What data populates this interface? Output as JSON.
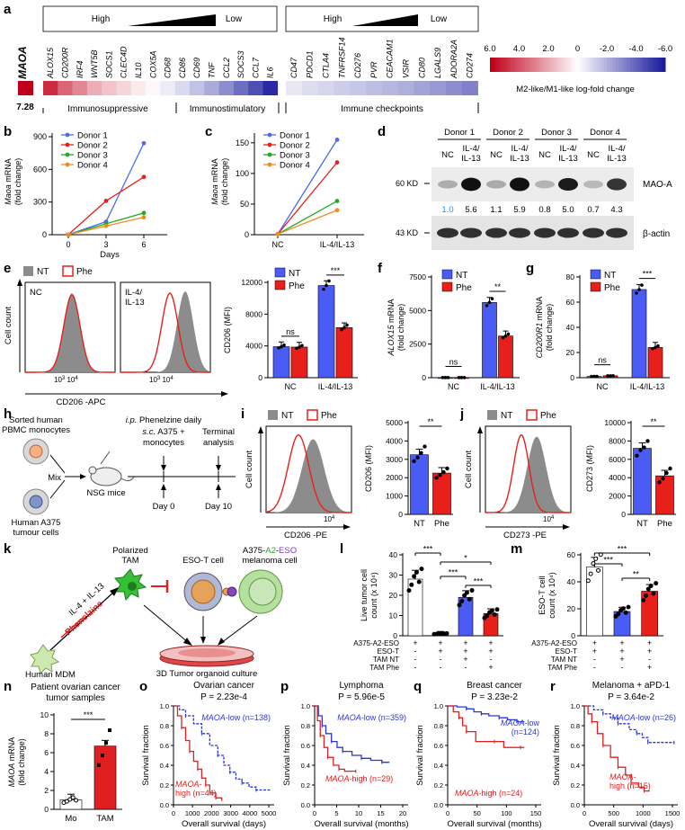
{
  "panels": {
    "a": "a",
    "b": "b",
    "c": "c",
    "d": "d",
    "e": "e",
    "f": "f",
    "g": "g",
    "h": "h",
    "i": "i",
    "j": "j",
    "k": "k",
    "l": "l",
    "m": "m",
    "n": "n",
    "o": "o",
    "p": "p",
    "q": "q",
    "r": "r"
  },
  "panel_a": {
    "high": "High",
    "low": "Low",
    "maoa_label": "MAOA",
    "maoa_value": "7.28",
    "genes": [
      "ALOX15",
      "CD200R",
      "IRF4",
      "WNT5B",
      "SOCS1",
      "CLEC4D",
      "IL10",
      "COX5A",
      "CD68",
      "CD86",
      "CD69",
      "TNF",
      "CCL2",
      "SOCS3",
      "CCL7",
      "IL6",
      "CD47",
      "PDCD1",
      "CTLA4",
      "TNFRSF14",
      "CD276",
      "PVR",
      "CEACAM1",
      "VSIR",
      "CD80",
      "LGALS9",
      "ADORA2A",
      "CD274"
    ],
    "values": [
      5.0,
      3.6,
      2.8,
      1.9,
      1.4,
      1.0,
      0.5,
      0.2,
      -0.5,
      -1.0,
      -1.6,
      -2.2,
      -3.0,
      -3.8,
      -4.6,
      -5.6,
      -0.6,
      -0.9,
      -1.1,
      -1.3,
      -1.5,
      -1.7,
      -1.9,
      -2.1,
      -2.4,
      -2.7,
      -3.0,
      -3.3
    ],
    "group_labels": [
      "Immunosuppressive",
      "Immunostimulatory",
      "Immune checkpoints"
    ],
    "scale_ticks": [
      "6.0",
      "4.0",
      "2.0",
      "0",
      "-2.0",
      "-4.0",
      "-6.0"
    ],
    "scale_title": "M2-like/M1-like log-fold change",
    "colors": {
      "high": "#c0001a",
      "mid": "#ffffff",
      "low": "#1a1a9c"
    }
  },
  "panel_b": {
    "ylabel_italic": "Maoa",
    "ylabel_rest": " mRNA",
    "ylabel2": "(fold change)",
    "xlabel": "Days",
    "x_ticks": [
      "0",
      "3",
      "6"
    ],
    "y_ticks": [
      "0",
      "300",
      "600",
      "900"
    ],
    "legend": [
      "Donor 1",
      "Donor 2",
      "Donor 3",
      "Donor 4"
    ],
    "colors": [
      "#4a6cf0",
      "#e8201c",
      "#22aa22",
      "#f28c1e"
    ],
    "chart_data": {
      "type": "line",
      "x": [
        0,
        3,
        6
      ],
      "series": [
        {
          "name": "Donor 1",
          "values": [
            1,
            120,
            840
          ]
        },
        {
          "name": "Donor 2",
          "values": [
            1,
            310,
            530
          ]
        },
        {
          "name": "Donor 3",
          "values": [
            1,
            100,
            200
          ]
        },
        {
          "name": "Donor 4",
          "values": [
            1,
            80,
            160
          ]
        }
      ],
      "ylim": [
        0,
        900
      ]
    }
  },
  "panel_c": {
    "ylabel_italic": "Maoa",
    "ylabel_rest": " mRNA",
    "ylabel2": "(fold change)",
    "x_ticks": [
      "NC",
      "IL-4/IL-13"
    ],
    "y_ticks": [
      "0",
      "50",
      "100",
      "150"
    ],
    "legend": [
      "Donor 1",
      "Donor 2",
      "Donor 3",
      "Donor 4"
    ],
    "chart_data": {
      "type": "line",
      "x": [
        "NC",
        "IL-4/IL-13"
      ],
      "series": [
        {
          "name": "Donor 1",
          "values": [
            1,
            155
          ]
        },
        {
          "name": "Donor 2",
          "values": [
            1,
            118
          ]
        },
        {
          "name": "Donor 3",
          "values": [
            1,
            55
          ]
        },
        {
          "name": "Donor 4",
          "values": [
            1,
            40
          ]
        }
      ],
      "ylim": [
        0,
        160
      ]
    }
  },
  "panel_d": {
    "donors": [
      "Donor 1",
      "Donor 2",
      "Donor 3",
      "Donor 4"
    ],
    "lanes": [
      "NC",
      "IL-4/\nIL-13",
      "NC",
      "IL-4/\nIL-13",
      "NC",
      "IL-4/\nIL-13",
      "NC",
      "IL-4/\nIL-13"
    ],
    "lane_nc": "NC",
    "lane_il_1": "IL-4/",
    "lane_il_2": "IL-13",
    "quant": [
      "1.0",
      "5.6",
      "1.1",
      "5.9",
      "0.8",
      "5.0",
      "0.7",
      "4.3"
    ],
    "quant_first_color": "#1e90ff",
    "mw1": "60 KD",
    "mw2": "43 KD",
    "protein1": "MAO-A",
    "protein2": "β-actin"
  },
  "panel_e": {
    "legend_nt": "NT",
    "legend_phe": "Phe",
    "hist1_label": "NC",
    "hist2_label_1": "IL-4/",
    "hist2_label_2": "IL-13",
    "ylabel": "Cell count",
    "xlabel": "CD206 -APC",
    "x_ticks": [
      "10",
      "3",
      "10",
      "4"
    ],
    "bar_ylabel": "CD206 (MFI)",
    "bar_y_ticks": [
      "0",
      "4000",
      "8000",
      "12000"
    ],
    "groups": [
      "NC",
      "IL-4/IL-13"
    ],
    "sig": [
      "ns",
      "***"
    ],
    "chart_data": {
      "type": "bar",
      "categories": [
        "NC",
        "IL-4/IL-13"
      ],
      "series": [
        {
          "name": "NT",
          "values": [
            3900,
            11600
          ]
        },
        {
          "name": "Phe",
          "values": [
            3850,
            6300
          ]
        }
      ],
      "ylim": [
        0,
        12000
      ]
    }
  },
  "panel_f": {
    "ylabel_italic": "ALOX15",
    "ylabel_rest": " mRNA",
    "ylabel2": "(fold change)",
    "y_ticks": [
      "0",
      "2500",
      "5000",
      "7500"
    ],
    "groups": [
      "NC",
      "IL-4/IL-13"
    ],
    "sig": [
      "ns",
      "**"
    ],
    "legend_nt": "NT",
    "legend_phe": "Phe",
    "chart_data": {
      "type": "bar",
      "categories": [
        "NC",
        "IL-4/IL-13"
      ],
      "series": [
        {
          "name": "NT",
          "values": [
            10,
            5600
          ]
        },
        {
          "name": "Phe",
          "values": [
            10,
            3100
          ]
        }
      ],
      "ylim": [
        0,
        7500
      ]
    }
  },
  "panel_g": {
    "ylabel_italic": "CD200R1",
    "ylabel_rest": " mRNA",
    "ylabel2": "(fold change)",
    "y_ticks": [
      "0",
      "20",
      "40",
      "60",
      "80"
    ],
    "groups": [
      "NC",
      "IL-4/IL-13"
    ],
    "sig": [
      "ns",
      "***"
    ],
    "legend_nt": "NT",
    "legend_phe": "Phe",
    "chart_data": {
      "type": "bar",
      "categories": [
        "NC",
        "IL-4/IL-13"
      ],
      "series": [
        {
          "name": "NT",
          "values": [
            1,
            70
          ]
        },
        {
          "name": "Phe",
          "values": [
            1.5,
            24
          ]
        }
      ],
      "ylim": [
        0,
        80
      ]
    }
  },
  "panel_h": {
    "sorted_1": "Sorted human",
    "sorted_2": "PBMC monocytes",
    "mix": "Mix",
    "nsg": "NSG mice",
    "tumour_1": "Human A375",
    "tumour_2": "tumour cells",
    "ip_1": "i.p.",
    "ip_2": " Phenelzine daily",
    "sc_1": "s.c.",
    "sc_2": " A375 +",
    "sc_3": "monocytes",
    "terminal_1": "Terminal",
    "terminal_2": "analysis",
    "day0": "Day 0",
    "day10": "Day 10"
  },
  "panel_i": {
    "legend_nt": "NT",
    "legend_phe": "Phe",
    "ylabel": "Cell count",
    "xlabel": "CD206 -PE",
    "x_tick": "10",
    "x_sup": "4",
    "bar_ylabel": "CD206 (MFI)",
    "bar_y_ticks": [
      "0",
      "1000",
      "2000",
      "3000",
      "4000",
      "5000"
    ],
    "groups": [
      "NT",
      "Phe"
    ],
    "sig": "**",
    "chart_data": {
      "type": "bar",
      "categories": [
        "NT",
        "Phe"
      ],
      "values": [
        3250,
        2250
      ],
      "points": [
        [
          2900,
          3100,
          3350,
          3700
        ],
        [
          2000,
          2150,
          2300,
          2500
        ]
      ],
      "ylim": [
        0,
        5000
      ]
    }
  },
  "panel_j": {
    "legend_nt": "NT",
    "legend_phe": "Phe",
    "ylabel": "Cell count",
    "xlabel": "CD273 -PE",
    "x_tick": "10",
    "x_sup": "4",
    "bar_ylabel": "CD273 (MFI)",
    "bar_y_ticks": [
      "0",
      "2000",
      "4000",
      "6000",
      "8000",
      "10000"
    ],
    "groups": [
      "NT",
      "Phe"
    ],
    "sig": "**",
    "chart_data": {
      "type": "bar",
      "categories": [
        "NT",
        "Phe"
      ],
      "values": [
        7200,
        4200
      ],
      "points": [
        [
          6400,
          7000,
          7300,
          8000
        ],
        [
          3500,
          3900,
          4500,
          5000
        ]
      ],
      "ylim": [
        0,
        10000
      ]
    }
  },
  "panel_k": {
    "polarized_1": "Polarized",
    "polarized_2": "TAM",
    "eso_t": "ESO-T cell",
    "a375_1": "A375-",
    "a375_a2": "A2",
    "a375_dash": "-",
    "a375_eso": "ESO",
    "a375_2": "melanoma cell",
    "il": "IL-4 + IL-13",
    "phe": "Phenelzine",
    "mdm": "Human MDM",
    "organoid": "3D Tumor organoid culture"
  },
  "panel_l": {
    "ylabel_1": "Live tumor cell",
    "ylabel_2": "count (x 10⁴)",
    "y_ticks": [
      "0",
      "10",
      "20",
      "30",
      "40"
    ],
    "row_labels": [
      "A375-A2-ESO",
      "ESO-T",
      "TAM NT",
      "TAM Phe"
    ],
    "matrix": [
      [
        "+",
        "+",
        "+",
        "+"
      ],
      [
        "-",
        "+",
        "+",
        "+"
      ],
      [
        "-",
        "-",
        "+",
        "-"
      ],
      [
        "-",
        "-",
        "-",
        "+"
      ]
    ],
    "sig": [
      "***",
      "*",
      "***",
      "***"
    ],
    "chart_data": {
      "type": "bar",
      "categories": [
        "1",
        "2",
        "3",
        "4"
      ],
      "values": [
        28,
        1,
        19,
        11
      ],
      "ylim": [
        0,
        40
      ]
    }
  },
  "panel_m": {
    "ylabel_1": "ESO-T cell",
    "ylabel_2": "count (x 10⁴)",
    "y_ticks": [
      "0",
      "20",
      "40",
      "60"
    ],
    "row_labels": [
      "A375-A2-ESO",
      "ESO-T",
      "TAM NT",
      "TAM Phe"
    ],
    "matrix": [
      [
        "+",
        "+",
        "+"
      ],
      [
        "+",
        "+",
        "+"
      ],
      [
        "-",
        "+",
        "-"
      ],
      [
        "-",
        "-",
        "+"
      ]
    ],
    "sig": [
      "***",
      "***",
      "**"
    ],
    "chart_data": {
      "type": "bar",
      "categories": [
        "1",
        "2",
        "3"
      ],
      "values": [
        51,
        18,
        33
      ],
      "ylim": [
        0,
        60
      ]
    }
  },
  "panel_n": {
    "title_1": "Patient ovarian cancer",
    "title_2": "tumor samples",
    "ylabel_italic": "MAOA",
    "ylabel_rest": " mRNA",
    "ylabel2": "(fold change)",
    "y_ticks": [
      "0",
      "2",
      "4",
      "6",
      "8",
      "10"
    ],
    "groups": [
      "Mo",
      "TAM"
    ],
    "sig": "***",
    "chart_data": {
      "type": "bar",
      "categories": [
        "Mo",
        "TAM"
      ],
      "values": [
        1,
        6.7
      ],
      "ylim": [
        0,
        10
      ]
    }
  },
  "survival": [
    {
      "title": "Ovarian cancer",
      "p": "P = 2.23e-4",
      "xlabel": "Overall survival (days)",
      "x_ticks": [
        "0",
        "1000",
        "2000",
        "3000",
        "4000",
        "5000"
      ],
      "low": "MAOA-low (n=138)",
      "high_1": "MAOA-",
      "high_2": "high (n=44)"
    },
    {
      "title": "Lymphoma",
      "p": "P = 5.96e-5",
      "xlabel": "Overall survival (months)",
      "x_ticks": [
        "0",
        "5",
        "10",
        "15",
        "20"
      ],
      "low": "MAOA-low (n=359)",
      "high_1": "MAOA-high (n=29)",
      "high_2": ""
    },
    {
      "title": "Breast cancer",
      "p": "P = 3.23e-2",
      "xlabel": "Overall survival (months)",
      "x_ticks": [
        "0",
        "50",
        "100",
        "150"
      ],
      "low_1": "MAOA-low",
      "low_2": "(n=124)",
      "high_1": "MAOA-high (n=24)"
    },
    {
      "title": "Melanoma + aPD-1",
      "p": "P = 3.64e-2",
      "xlabel": "Overall survival (days)",
      "x_ticks": [
        "0",
        "500",
        "1000",
        "1500"
      ],
      "low": "MAOA-low (n=26)",
      "high_1": "MAOA-",
      "high_2": "high (n=15)"
    }
  ],
  "surv_ylabel": "Survival fraction",
  "surv_y_ticks": [
    "0.0",
    "0.2",
    "0.4",
    "0.6",
    "0.8",
    "1.0"
  ],
  "colors": {
    "blue": "#2b35d8",
    "red": "#e02020",
    "nt": "#4a5cf5",
    "phe": "#e8201c",
    "gray": "#8c8c8c"
  }
}
